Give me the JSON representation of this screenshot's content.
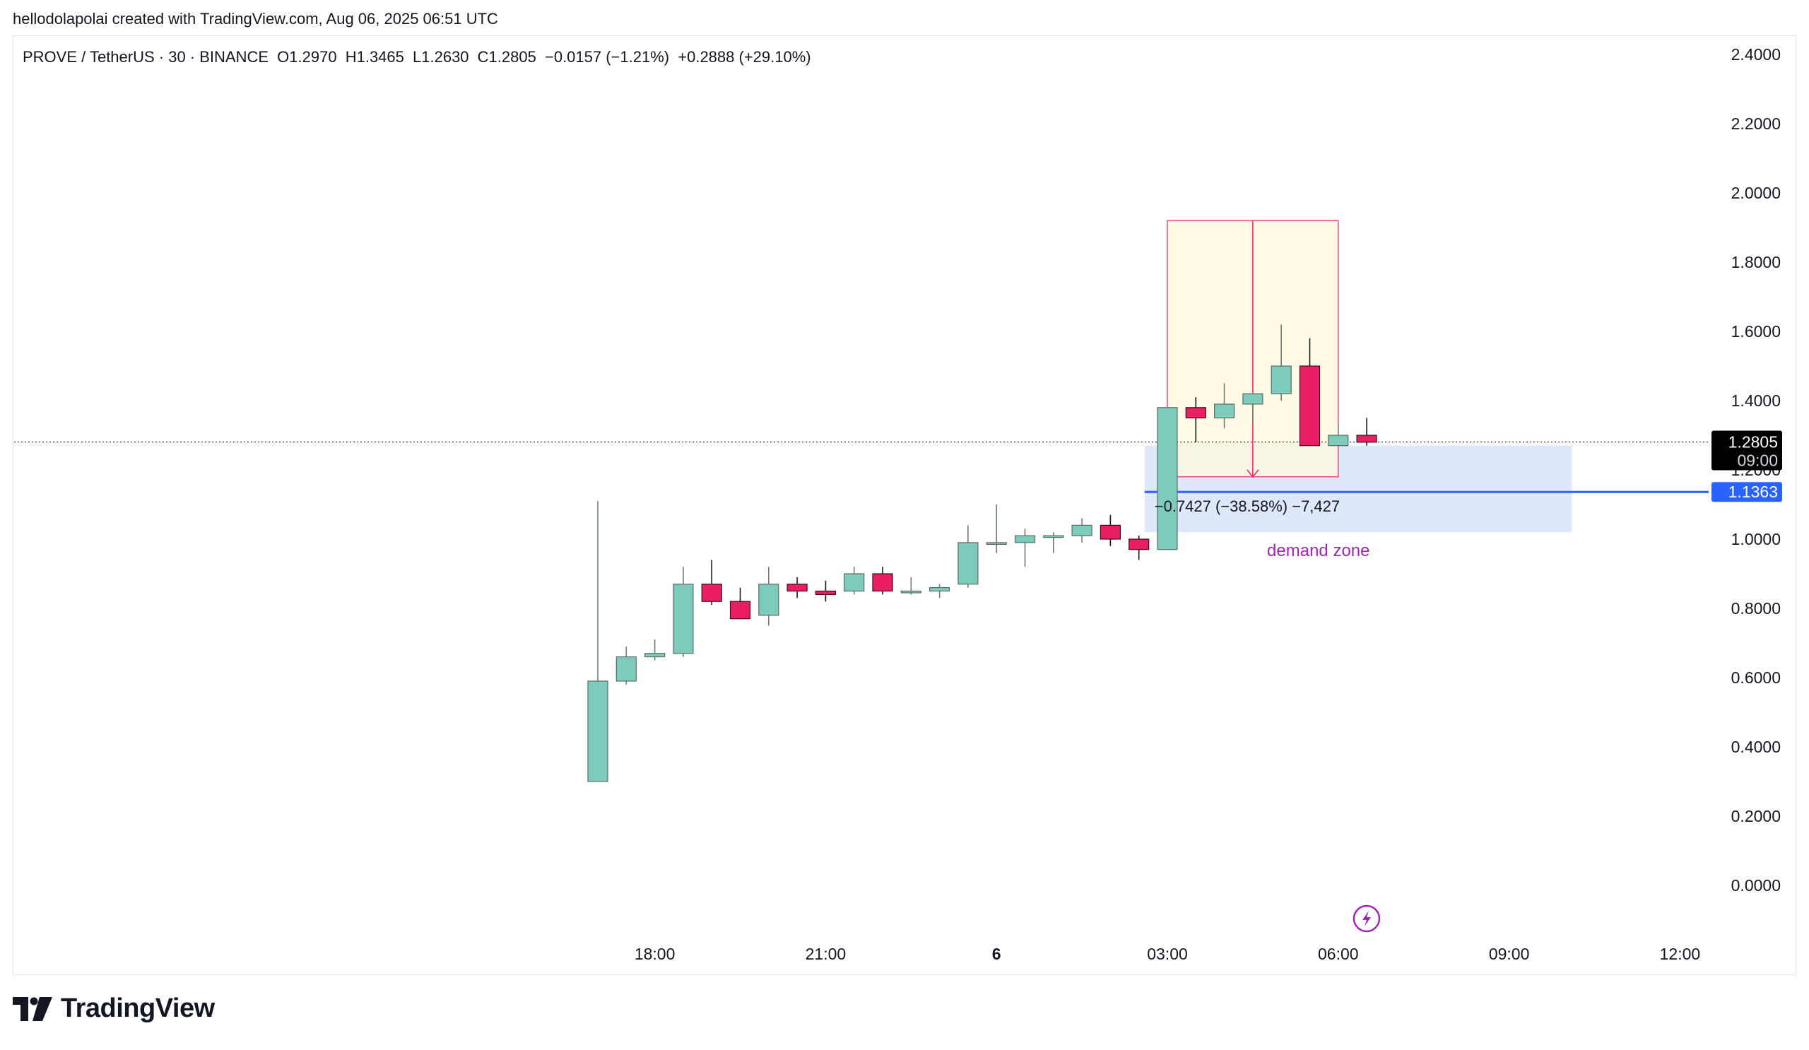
{
  "header": {
    "text": "hellodolapolai created with TradingView.com, Aug 06, 2025 06:51 UTC"
  },
  "legend": {
    "symbol": "PROVE / TetherUS · 30 · BINANCE",
    "open": "O1.2970",
    "high": "H1.3465",
    "low": "L1.2630",
    "close": "C1.2805",
    "change": "−0.0157 (−1.21%)",
    "change_total": "+0.2888 (+29.10%)"
  },
  "footer": {
    "brand": "TradingView"
  },
  "colors": {
    "up": "#7dcbbb",
    "down": "#e91e63",
    "demand": "#dfe7fb",
    "pattern": "#fff9dc",
    "line": "#2962ff",
    "label_purple": "#9c27b0"
  },
  "chart_data": {
    "type": "candlestick",
    "y_axis": {
      "ticks": [
        "2.4000",
        "2.2000",
        "2.0000",
        "1.8000",
        "1.6000",
        "1.4000",
        "1.2000",
        "1.0000",
        "0.8000",
        "0.6000",
        "0.4000",
        "0.2000",
        "0.0000"
      ],
      "range": [
        -0.05,
        2.45
      ],
      "side": "right"
    },
    "x_axis": {
      "ticks": [
        "18:00",
        "21:00",
        "6",
        "03:00",
        "06:00",
        "09:00",
        "12:00"
      ],
      "tick_index": [
        2,
        8,
        14,
        20,
        26,
        32,
        38
      ]
    },
    "candles": [
      {
        "i": 0,
        "o": 0.3,
        "h": 1.11,
        "l": 0.3,
        "c": 0.59
      },
      {
        "i": 1,
        "o": 0.59,
        "h": 0.69,
        "l": 0.58,
        "c": 0.66
      },
      {
        "i": 2,
        "o": 0.66,
        "h": 0.71,
        "l": 0.65,
        "c": 0.67
      },
      {
        "i": 3,
        "o": 0.67,
        "h": 0.92,
        "l": 0.66,
        "c": 0.87
      },
      {
        "i": 4,
        "o": 0.87,
        "h": 0.94,
        "l": 0.81,
        "c": 0.82
      },
      {
        "i": 5,
        "o": 0.82,
        "h": 0.86,
        "l": 0.77,
        "c": 0.77
      },
      {
        "i": 6,
        "o": 0.78,
        "h": 0.92,
        "l": 0.75,
        "c": 0.87
      },
      {
        "i": 7,
        "o": 0.87,
        "h": 0.89,
        "l": 0.83,
        "c": 0.85
      },
      {
        "i": 8,
        "o": 0.85,
        "h": 0.88,
        "l": 0.82,
        "c": 0.84
      },
      {
        "i": 9,
        "o": 0.85,
        "h": 0.92,
        "l": 0.84,
        "c": 0.9
      },
      {
        "i": 10,
        "o": 0.9,
        "h": 0.92,
        "l": 0.84,
        "c": 0.85
      },
      {
        "i": 11,
        "o": 0.85,
        "h": 0.89,
        "l": 0.84,
        "c": 0.85
      },
      {
        "i": 12,
        "o": 0.85,
        "h": 0.87,
        "l": 0.83,
        "c": 0.86
      },
      {
        "i": 13,
        "o": 0.87,
        "h": 1.04,
        "l": 0.86,
        "c": 0.99
      },
      {
        "i": 14,
        "o": 0.99,
        "h": 1.1,
        "l": 0.96,
        "c": 0.99
      },
      {
        "i": 15,
        "o": 0.99,
        "h": 1.03,
        "l": 0.92,
        "c": 1.01
      },
      {
        "i": 16,
        "o": 1.01,
        "h": 1.02,
        "l": 0.96,
        "c": 1.01
      },
      {
        "i": 17,
        "o": 1.01,
        "h": 1.06,
        "l": 0.99,
        "c": 1.04
      },
      {
        "i": 18,
        "o": 1.04,
        "h": 1.07,
        "l": 0.98,
        "c": 1.0
      },
      {
        "i": 19,
        "o": 1.0,
        "h": 1.01,
        "l": 0.94,
        "c": 0.97
      },
      {
        "i": 20,
        "o": 0.97,
        "h": 1.38,
        "l": 0.97,
        "c": 1.38
      },
      {
        "i": 21,
        "o": 1.38,
        "h": 1.41,
        "l": 1.28,
        "c": 1.35
      },
      {
        "i": 22,
        "o": 1.35,
        "h": 1.45,
        "l": 1.32,
        "c": 1.39
      },
      {
        "i": 23,
        "o": 1.39,
        "h": 1.42,
        "l": 1.33,
        "c": 1.42
      },
      {
        "i": 24,
        "o": 1.42,
        "h": 1.62,
        "l": 1.4,
        "c": 1.5
      },
      {
        "i": 25,
        "o": 1.5,
        "h": 1.58,
        "l": 1.27,
        "c": 1.27
      },
      {
        "i": 26,
        "o": 1.27,
        "h": 1.33,
        "l": 1.27,
        "c": 1.3
      },
      {
        "i": 27,
        "o": 1.3,
        "h": 1.35,
        "l": 1.27,
        "c": 1.28
      }
    ],
    "price_labels": [
      {
        "value": "1.2805",
        "sub": "09:00",
        "y": 1.2805,
        "style": "dark"
      },
      {
        "value": "1.1363",
        "y": 1.1363,
        "style": "blue"
      }
    ],
    "annotations": {
      "demand_zone": {
        "label": "demand zone",
        "x_from": 19.2,
        "x_to": 34.2,
        "y_from": 1.02,
        "y_to": 1.27
      },
      "measure_box": {
        "x_from": 20.0,
        "x_to": 26.0,
        "y_from": 1.18,
        "y_to": 1.92
      },
      "measure_label": "−0.7427 (−38.58%) −7,427",
      "current_price_line": 1.2805,
      "horizontal_line": {
        "y": 1.1363,
        "x_from": 19.2
      }
    }
  }
}
